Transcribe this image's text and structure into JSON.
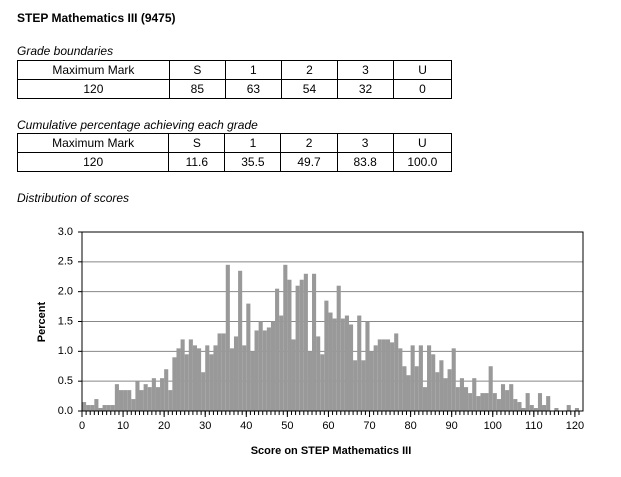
{
  "title": "STEP Mathematics III (9475)",
  "grade_boundaries": {
    "caption": "Grade boundaries",
    "header": [
      "Maximum Mark",
      "S",
      "1",
      "2",
      "3",
      "U"
    ],
    "rows": [
      [
        "120",
        "85",
        "63",
        "54",
        "32",
        "0"
      ]
    ]
  },
  "cumulative": {
    "caption": "Cumulative percentage achieving each grade",
    "header": [
      "Maximum Mark",
      "S",
      "1",
      "2",
      "3",
      "U"
    ],
    "rows": [
      [
        "120",
        "11.6",
        "35.5",
        "49.7",
        "83.8",
        "100.0"
      ]
    ]
  },
  "distribution_caption": "Distribution of scores",
  "chart_data": {
    "type": "histogram",
    "x_label": "Score on STEP Mathematics III",
    "y_label": "Percent",
    "color": "#999999",
    "bins": [
      0,
      1,
      2,
      3,
      4,
      5,
      6,
      7,
      8,
      9,
      10,
      11,
      12,
      13,
      14,
      15,
      16,
      17,
      18,
      19,
      20,
      21,
      22,
      23,
      24,
      25,
      26,
      27,
      28,
      29,
      30,
      31,
      32,
      33,
      34,
      35,
      36,
      37,
      38,
      39,
      40,
      41,
      42,
      43,
      44,
      45,
      46,
      47,
      48,
      49,
      50,
      51,
      52,
      53,
      54,
      55,
      56,
      57,
      58,
      59,
      60,
      61,
      62,
      63,
      64,
      65,
      66,
      67,
      68,
      69,
      70,
      71,
      72,
      73,
      74,
      75,
      76,
      77,
      78,
      79,
      80,
      81,
      82,
      83,
      84,
      85,
      86,
      87,
      88,
      89,
      90,
      91,
      92,
      93,
      94,
      95,
      96,
      97,
      98,
      99,
      100,
      101,
      102,
      103,
      104,
      105,
      106,
      107,
      108,
      109,
      110,
      111,
      112,
      113,
      114,
      115,
      116,
      117,
      118,
      119,
      120,
      121
    ],
    "values": [
      0.15,
      0.1,
      0.1,
      0.2,
      0.05,
      0.1,
      0.1,
      0.1,
      0.45,
      0.35,
      0.35,
      0.35,
      0.2,
      0.5,
      0.35,
      0.45,
      0.4,
      0.55,
      0.4,
      0.55,
      0.7,
      0.35,
      0.9,
      1.05,
      1.2,
      0.95,
      1.2,
      1.1,
      1.05,
      0.65,
      1.1,
      0.95,
      1.1,
      1.3,
      1.3,
      2.45,
      1.05,
      1.25,
      2.35,
      1.1,
      1.8,
      1.0,
      1.35,
      1.5,
      1.35,
      1.4,
      1.5,
      2.05,
      1.6,
      2.45,
      2.2,
      1.2,
      2.1,
      2.2,
      2.3,
      1.0,
      2.3,
      1.25,
      0.95,
      1.85,
      1.65,
      1.55,
      2.1,
      1.55,
      1.6,
      1.45,
      0.85,
      1.6,
      0.85,
      1.5,
      1.0,
      1.1,
      1.2,
      1.2,
      1.2,
      1.15,
      1.3,
      1.05,
      0.75,
      0.6,
      1.1,
      0.75,
      1.1,
      0.4,
      1.1,
      0.95,
      0.65,
      0.85,
      0.55,
      0.7,
      1.05,
      0.4,
      0.55,
      0.4,
      0.3,
      0.55,
      0.25,
      0.3,
      0.3,
      0.75,
      0.3,
      0.2,
      0.45,
      0.35,
      0.45,
      0.2,
      0.15,
      0.05,
      0.3,
      0.1,
      0.05,
      0.3,
      0.1,
      0.25,
      0.0,
      0.05,
      0.0,
      0.0,
      0.1,
      0.0,
      0.05
    ],
    "xlim": [
      0,
      121
    ],
    "xticks": [
      0,
      10,
      20,
      30,
      40,
      50,
      60,
      70,
      80,
      90,
      100,
      110,
      120
    ],
    "ylim": [
      0,
      3
    ],
    "yticks": [
      {
        "value": 0,
        "label": "0.0"
      },
      0.5,
      {
        "value": 1,
        "label": "1.0"
      },
      1.5,
      {
        "value": 2,
        "label": "2.0"
      },
      2.5,
      {
        "value": 3,
        "label": "3.0"
      }
    ],
    "grid": true
  }
}
